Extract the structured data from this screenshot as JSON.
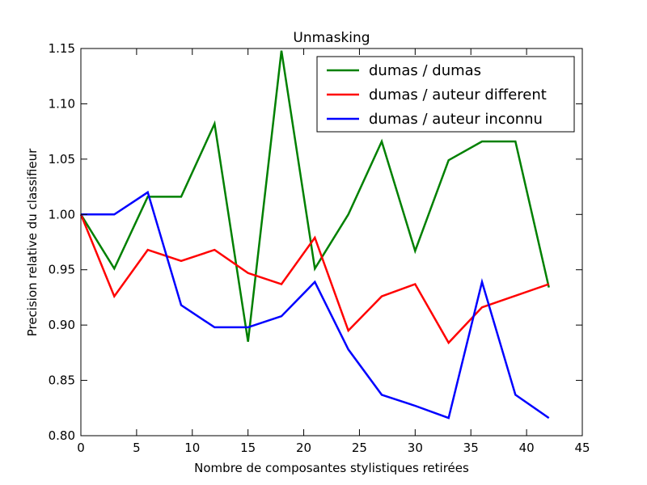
{
  "chart_data": {
    "type": "line",
    "title": "Unmasking",
    "xlabel": "Nombre de composantes stylistiques retirées",
    "ylabel": "Precision relative du classifieur",
    "xlim": [
      0,
      45
    ],
    "ylim": [
      0.8,
      1.15
    ],
    "xticks": [
      "0",
      "5",
      "10",
      "15",
      "20",
      "25",
      "30",
      "35",
      "40",
      "45"
    ],
    "yticks": [
      "0.80",
      "0.85",
      "0.90",
      "0.95",
      "1.00",
      "1.05",
      "1.10",
      "1.15"
    ],
    "grid": false,
    "legend_position": "top-right",
    "x": [
      0,
      3,
      6,
      9,
      12,
      15,
      18,
      21,
      24,
      27,
      30,
      33,
      36,
      39,
      42
    ],
    "series": [
      {
        "name": "dumas / dumas",
        "color": "#008000",
        "x": [
          0,
          3,
          6,
          9,
          12,
          15,
          18,
          21,
          24,
          27,
          30,
          33,
          36,
          39,
          42
        ],
        "values": [
          1.0,
          0.951,
          1.016,
          1.016,
          1.082,
          0.885,
          1.148,
          0.951,
          1.0,
          1.066,
          0.967,
          1.049,
          1.066,
          1.066,
          0.934
        ]
      },
      {
        "name": "dumas / auteur different",
        "color": "#ff0000",
        "x": [
          0,
          3,
          6,
          9,
          12,
          15,
          18,
          21,
          24,
          27,
          30,
          33,
          36,
          42
        ],
        "values": [
          1.0,
          0.926,
          0.968,
          0.958,
          0.968,
          0.947,
          0.937,
          0.979,
          0.895,
          0.926,
          0.937,
          0.884,
          0.916,
          0.937
        ]
      },
      {
        "name": "dumas / auteur inconnu",
        "color": "#0000ff",
        "x": [
          0,
          3,
          6,
          9,
          12,
          15,
          18,
          21,
          24,
          27,
          30,
          33,
          36,
          39,
          42
        ],
        "values": [
          1.0,
          1.0,
          1.02,
          0.918,
          0.898,
          0.898,
          0.908,
          0.939,
          0.878,
          0.837,
          0.827,
          0.816,
          0.939,
          0.837,
          0.816
        ]
      }
    ]
  }
}
